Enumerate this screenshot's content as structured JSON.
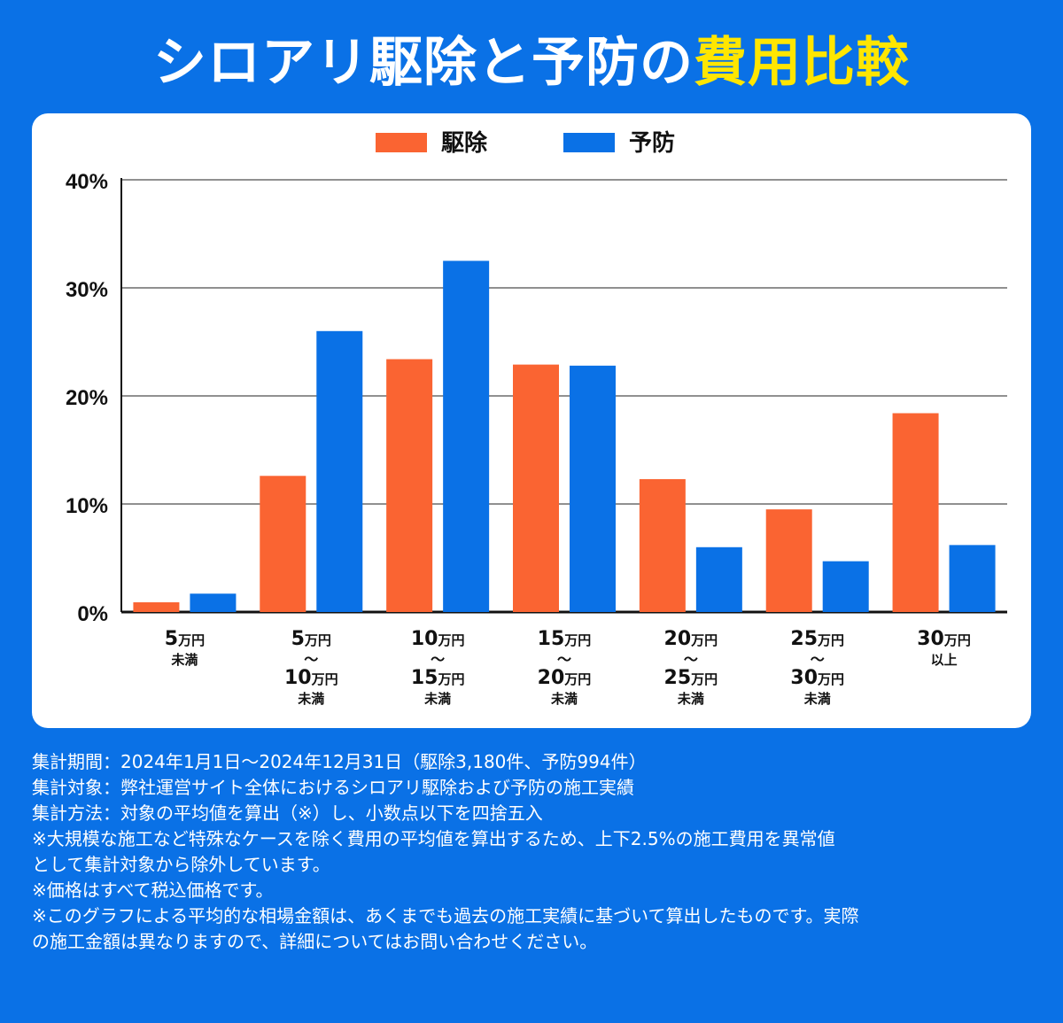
{
  "title": {
    "prefix": "シロアリ駆除と予防の",
    "highlight": "費用比較"
  },
  "colors": {
    "background": "#0a71e6",
    "highlight": "#ffe600",
    "kujo": "#fa6432",
    "yobo": "#0a71e6"
  },
  "chart_data": {
    "type": "bar",
    "title": "シロアリ駆除と予防の費用比較",
    "ylim": [
      0,
      40
    ],
    "yticks": [
      "0%",
      "10%",
      "20%",
      "30%",
      "40%"
    ],
    "ytick_values": [
      0,
      10,
      20,
      30,
      40
    ],
    "grid": true,
    "legend_position": "top-center",
    "categories": [
      [
        "5万円",
        "未満"
      ],
      [
        "5万円",
        "〜",
        "10万円",
        "未満"
      ],
      [
        "10万円",
        "〜",
        "15万円",
        "未満"
      ],
      [
        "15万円",
        "〜",
        "20万円",
        "未満"
      ],
      [
        "20万円",
        "〜",
        "25万円",
        "未満"
      ],
      [
        "25万円",
        "〜",
        "30万円",
        "未満"
      ],
      [
        "30万円",
        "以上"
      ]
    ],
    "series": [
      {
        "name": "駆除",
        "color": "#fa6432",
        "values": [
          0.9,
          12.6,
          23.4,
          22.9,
          12.3,
          9.5,
          18.4
        ]
      },
      {
        "name": "予防",
        "color": "#0a71e6",
        "values": [
          1.7,
          26.0,
          32.5,
          22.8,
          6.0,
          4.7,
          6.2
        ]
      }
    ]
  },
  "notes": [
    "集計期間：2024年1月1日〜2024年12月31日（駆除3,180件、予防994件）",
    "集計対象：弊社運営サイト全体におけるシロアリ駆除および予防の施工実績",
    "集計方法：対象の平均値を算出（※）し、小数点以下を四捨五入",
    "※大規模な施工など特殊なケースを除く費用の平均値を算出するため、上下2.5%の施工費用を異常値",
    "として集計対象から除外しています。",
    "※価格はすべて税込価格です。",
    "※このグラフによる平均的な相場金額は、あくまでも過去の施工実績に基づいて算出したものです。実際",
    "の施工金額は異なりますので、詳細についてはお問い合わせください。"
  ]
}
